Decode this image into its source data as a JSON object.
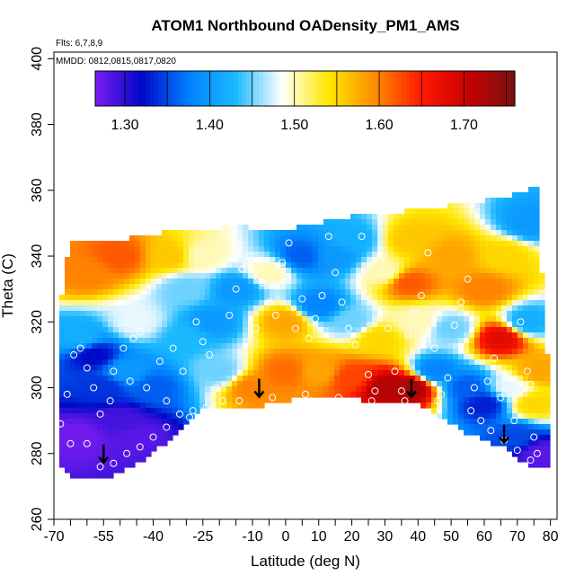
{
  "chart_data": {
    "type": "heatmap",
    "title": "ATOM1 Northbound OADensity_PM1_AMS",
    "annotations": {
      "flights": "Flts: 6,7,8,9",
      "dates": "MMDD: 0812,0815,0817,0820"
    },
    "xlabel": "Latitude (deg N)",
    "ylabel": "Theta (C)",
    "xlim": [
      -70,
      82
    ],
    "ylim": [
      260,
      402
    ],
    "x_ticks": [
      "-70",
      "-55",
      "-40",
      "-25",
      "-10",
      "0",
      "10",
      "20",
      "30",
      "40",
      "50",
      "60",
      "70",
      "80"
    ],
    "x_tick_values": [
      -70,
      -55,
      -40,
      -25,
      -10,
      0,
      10,
      20,
      30,
      40,
      50,
      60,
      70,
      80
    ],
    "x_minor_ticks": [
      -65,
      -60,
      -50,
      -45,
      -35,
      -30,
      -20,
      -15,
      -5,
      5,
      15,
      25,
      35,
      45,
      55,
      65,
      75
    ],
    "y_ticks": [
      "260",
      "280",
      "300",
      "320",
      "340",
      "360",
      "380",
      "400"
    ],
    "y_tick_values": [
      260,
      280,
      300,
      320,
      340,
      360,
      380,
      400
    ],
    "colorbar": {
      "range": [
        1.265,
        1.76
      ],
      "ticks": [
        "1.30",
        "1.40",
        "1.50",
        "1.60",
        "1.70"
      ],
      "tick_values": [
        1.3,
        1.4,
        1.5,
        1.6,
        1.7
      ],
      "colors": [
        "#7a1df0",
        "#0008c8",
        "#0080ff",
        "#19b8ff",
        "#ffffff",
        "#ffe800",
        "#ff8c00",
        "#ff1a00",
        "#c80000",
        "#7a1010"
      ]
    },
    "field": [
      {
        "lat": -62,
        "theta": 285,
        "value": 1.27
      },
      {
        "lat": -50,
        "theta": 290,
        "value": 1.29
      },
      {
        "lat": -45,
        "theta": 285,
        "value": 1.28
      },
      {
        "lat": -55,
        "theta": 300,
        "value": 1.34
      },
      {
        "lat": -48,
        "theta": 305,
        "value": 1.4
      },
      {
        "lat": -40,
        "theta": 300,
        "value": 1.36
      },
      {
        "lat": -62,
        "theta": 315,
        "value": 1.42
      },
      {
        "lat": -45,
        "theta": 320,
        "value": 1.48
      },
      {
        "lat": -60,
        "theta": 335,
        "value": 1.6
      },
      {
        "lat": -50,
        "theta": 340,
        "value": 1.62
      },
      {
        "lat": -35,
        "theta": 340,
        "value": 1.56
      },
      {
        "lat": -30,
        "theta": 330,
        "value": 1.45
      },
      {
        "lat": -25,
        "theta": 340,
        "value": 1.5
      },
      {
        "lat": -22,
        "theta": 320,
        "value": 1.4
      },
      {
        "lat": -30,
        "theta": 315,
        "value": 1.43
      },
      {
        "lat": -15,
        "theta": 330,
        "value": 1.4
      },
      {
        "lat": -20,
        "theta": 305,
        "value": 1.45
      },
      {
        "lat": -10,
        "theta": 300,
        "value": 1.6
      },
      {
        "lat": 0,
        "theta": 305,
        "value": 1.61
      },
      {
        "lat": 0,
        "theta": 320,
        "value": 1.58
      },
      {
        "lat": -5,
        "theta": 335,
        "value": 1.5
      },
      {
        "lat": 5,
        "theta": 340,
        "value": 1.36
      },
      {
        "lat": 10,
        "theta": 325,
        "value": 1.38
      },
      {
        "lat": 10,
        "theta": 305,
        "value": 1.58
      },
      {
        "lat": 15,
        "theta": 340,
        "value": 1.4
      },
      {
        "lat": 20,
        "theta": 345,
        "value": 1.42
      },
      {
        "lat": 20,
        "theta": 320,
        "value": 1.45
      },
      {
        "lat": 20,
        "theta": 303,
        "value": 1.63
      },
      {
        "lat": 30,
        "theta": 300,
        "value": 1.72
      },
      {
        "lat": 28,
        "theta": 315,
        "value": 1.55
      },
      {
        "lat": 30,
        "theta": 335,
        "value": 1.5
      },
      {
        "lat": 38,
        "theta": 345,
        "value": 1.56
      },
      {
        "lat": 37,
        "theta": 332,
        "value": 1.62
      },
      {
        "lat": 38,
        "theta": 300,
        "value": 1.73
      },
      {
        "lat": 40,
        "theta": 320,
        "value": 1.5
      },
      {
        "lat": 45,
        "theta": 305,
        "value": 1.38
      },
      {
        "lat": 50,
        "theta": 340,
        "value": 1.58
      },
      {
        "lat": 50,
        "theta": 318,
        "value": 1.45
      },
      {
        "lat": 55,
        "theta": 300,
        "value": 1.36
      },
      {
        "lat": 60,
        "theta": 330,
        "value": 1.6
      },
      {
        "lat": 60,
        "theta": 295,
        "value": 1.33
      },
      {
        "lat": 65,
        "theta": 315,
        "value": 1.68
      },
      {
        "lat": 66,
        "theta": 340,
        "value": 1.55
      },
      {
        "lat": 68,
        "theta": 300,
        "value": 1.48
      },
      {
        "lat": 70,
        "theta": 285,
        "value": 1.35
      },
      {
        "lat": 73,
        "theta": 320,
        "value": 1.42
      },
      {
        "lat": 74,
        "theta": 350,
        "value": 1.4
      },
      {
        "lat": 75,
        "theta": 295,
        "value": 1.55
      },
      {
        "lat": 76,
        "theta": 305,
        "value": 1.58
      },
      {
        "lat": 77,
        "theta": 280,
        "value": 1.28
      },
      {
        "lat": -58,
        "theta": 310,
        "value": 1.32
      }
    ],
    "boundary": {
      "top": [
        [
          -67,
          335
        ],
        [
          -65,
          344
        ],
        [
          -55,
          344
        ],
        [
          -45,
          346
        ],
        [
          -30,
          348
        ],
        [
          -15,
          349
        ],
        [
          0,
          348
        ],
        [
          20,
          352
        ],
        [
          40,
          354
        ],
        [
          60,
          357
        ],
        [
          70,
          359
        ],
        [
          76,
          361
        ]
      ],
      "bottom": [
        [
          76,
          276
        ],
        [
          70,
          278
        ],
        [
          66,
          282
        ],
        [
          55,
          286
        ],
        [
          40,
          295
        ],
        [
          25,
          296
        ],
        [
          11,
          298
        ],
        [
          0,
          296
        ],
        [
          -10,
          294
        ],
        [
          -25,
          294
        ],
        [
          -40,
          280
        ],
        [
          -47,
          276
        ],
        [
          -55,
          272
        ],
        [
          -62,
          272
        ],
        [
          -66,
          274
        ]
      ],
      "left_base": [
        [
          -66,
          274
        ],
        [
          -69,
          276
        ],
        [
          -69,
          310
        ],
        [
          -67,
          335
        ]
      ],
      "right_base": [
        [
          76,
          361
        ],
        [
          77,
          340
        ],
        [
          79,
          310
        ],
        [
          80,
          300
        ],
        [
          80,
          276
        ],
        [
          76,
          276
        ]
      ]
    },
    "samples": [
      [
        -66,
        298
      ],
      [
        -64,
        310
      ],
      [
        -62,
        312
      ],
      [
        -60,
        306
      ],
      [
        -58,
        300
      ],
      [
        -56,
        292
      ],
      [
        -53,
        296
      ],
      [
        -52,
        305
      ],
      [
        -49,
        312
      ],
      [
        -47,
        302
      ],
      [
        -46,
        315
      ],
      [
        -44,
        317
      ],
      [
        -42,
        300
      ],
      [
        -38,
        308
      ],
      [
        -36,
        296
      ],
      [
        -34,
        312
      ],
      [
        -31,
        305
      ],
      [
        -29,
        291
      ],
      [
        -27,
        320
      ],
      [
        -25,
        314
      ],
      [
        -23,
        310
      ],
      [
        -21,
        300
      ],
      [
        -19,
        296
      ],
      [
        -17,
        322
      ],
      [
        -15,
        330
      ],
      [
        -13,
        336
      ],
      [
        -11,
        340
      ],
      [
        -9,
        318
      ],
      [
        -7,
        332
      ],
      [
        -5,
        326
      ],
      [
        -3,
        322
      ],
      [
        -1,
        338
      ],
      [
        1,
        344
      ],
      [
        3,
        318
      ],
      [
        5,
        327
      ],
      [
        7,
        315
      ],
      [
        9,
        321
      ],
      [
        11,
        328
      ],
      [
        13,
        346
      ],
      [
        15,
        335
      ],
      [
        17,
        326
      ],
      [
        19,
        318
      ],
      [
        21,
        313
      ],
      [
        23,
        346
      ],
      [
        25,
        304
      ],
      [
        27,
        299
      ],
      [
        29,
        340
      ],
      [
        31,
        318
      ],
      [
        33,
        305
      ],
      [
        35,
        299
      ],
      [
        37,
        316
      ],
      [
        39,
        323
      ],
      [
        41,
        328
      ],
      [
        43,
        341
      ],
      [
        45,
        312
      ],
      [
        47,
        298
      ],
      [
        49,
        303
      ],
      [
        51,
        319
      ],
      [
        53,
        326
      ],
      [
        55,
        333
      ],
      [
        57,
        300
      ],
      [
        59,
        290
      ],
      [
        61,
        302
      ],
      [
        63,
        309
      ],
      [
        65,
        297
      ],
      [
        67,
        303
      ],
      [
        69,
        290
      ],
      [
        71,
        320
      ],
      [
        73,
        305
      ],
      [
        74,
        301
      ],
      [
        75,
        285
      ],
      [
        76,
        280
      ],
      [
        -68,
        289
      ],
      [
        -65,
        283
      ],
      [
        -60,
        283
      ],
      [
        -56,
        276
      ],
      [
        -52,
        277
      ],
      [
        -48,
        280
      ],
      [
        -44,
        282
      ],
      [
        -40,
        285
      ],
      [
        -36,
        288
      ],
      [
        -32,
        292
      ],
      [
        -28,
        293
      ],
      [
        -24,
        294
      ],
      [
        -14,
        296
      ],
      [
        -4,
        297
      ],
      [
        6,
        298
      ],
      [
        16,
        297
      ],
      [
        26,
        296
      ],
      [
        36,
        296
      ],
      [
        46,
        296
      ],
      [
        56,
        293
      ],
      [
        62,
        287
      ],
      [
        66,
        284
      ],
      [
        70,
        281
      ],
      [
        74,
        278
      ]
    ],
    "arrows": [
      {
        "lat": -55,
        "theta": 280
      },
      {
        "lat": -8,
        "theta": 300
      },
      {
        "lat": 38,
        "theta": 300
      },
      {
        "lat": 66,
        "theta": 286
      }
    ]
  }
}
